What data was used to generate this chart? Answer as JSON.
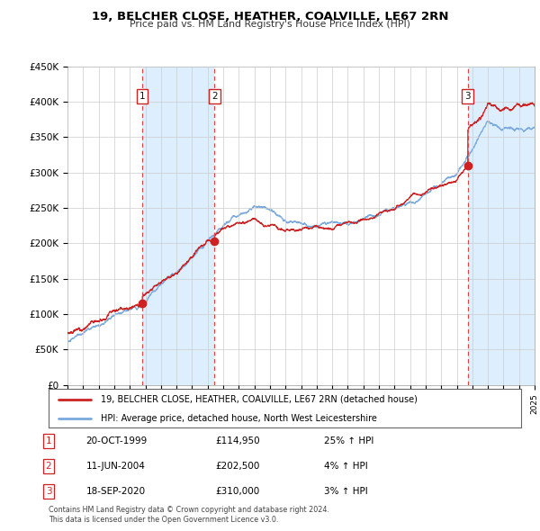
{
  "title": "19, BELCHER CLOSE, HEATHER, COALVILLE, LE67 2RN",
  "subtitle": "Price paid vs. HM Land Registry's House Price Index (HPI)",
  "x_start_year": 1995,
  "x_end_year": 2025,
  "y_min": 0,
  "y_max": 450000,
  "y_ticks": [
    0,
    50000,
    100000,
    150000,
    200000,
    250000,
    300000,
    350000,
    400000,
    450000
  ],
  "y_tick_labels": [
    "£0",
    "£50K",
    "£100K",
    "£150K",
    "£200K",
    "£250K",
    "£300K",
    "£350K",
    "£400K",
    "£450K"
  ],
  "purchases": [
    {
      "label": "1",
      "date": "20-OCT-1999",
      "price": 114950,
      "pct": "25%",
      "year": 1999.8
    },
    {
      "label": "2",
      "date": "11-JUN-2004",
      "price": 202500,
      "pct": "4%",
      "year": 2004.45
    },
    {
      "label": "3",
      "date": "18-SEP-2020",
      "price": 310000,
      "pct": "3%",
      "year": 2020.7
    }
  ],
  "legend_line1": "19, BELCHER CLOSE, HEATHER, COALVILLE, LE67 2RN (detached house)",
  "legend_line2": "HPI: Average price, detached house, North West Leicestershire",
  "footnote1": "Contains HM Land Registry data © Crown copyright and database right 2024.",
  "footnote2": "This data is licensed under the Open Government Licence v3.0.",
  "hpi_color": "#7aaadd",
  "price_color": "#cc2222",
  "vline_color": "#dd4444",
  "shade_color": "#ddeeff",
  "background_color": "#ffffff",
  "plot_bg_color": "#ffffff",
  "grid_color": "#cccccc",
  "table_rows": [
    [
      "1",
      "20-OCT-1999",
      "£114,950",
      "25% ↑ HPI"
    ],
    [
      "2",
      "11-JUN-2004",
      "£202,500",
      "4% ↑ HPI"
    ],
    [
      "3",
      "18-SEP-2020",
      "£310,000",
      "3% ↑ HPI"
    ]
  ]
}
